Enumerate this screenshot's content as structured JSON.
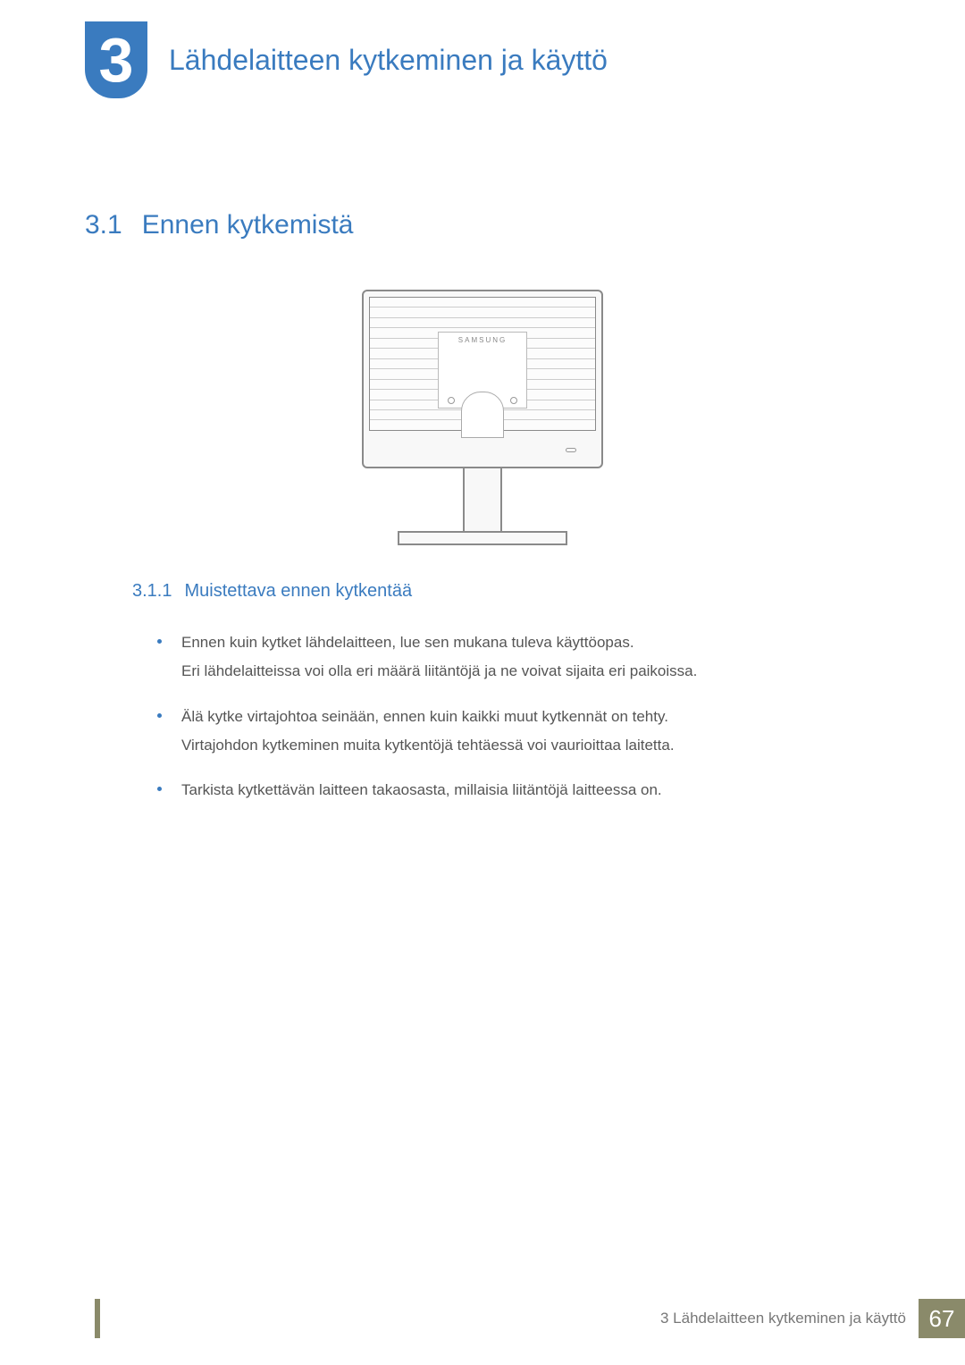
{
  "chapter": {
    "number": "3",
    "title": "Lähdelaitteen kytkeminen ja käyttö",
    "title_color": "#3a7bbf",
    "badge_bg": "#3a7bbf",
    "badge_text_color": "#ffffff"
  },
  "section": {
    "number": "3.1",
    "title": "Ennen kytkemistä",
    "color": "#3a7bbf",
    "fontsize": 30
  },
  "figure": {
    "type": "diagram",
    "brand_label": "SAMSUNG",
    "outline_color": "#8a8a8a",
    "fill_color": "#f8f8f8",
    "line_color": "#cccccc"
  },
  "subsection": {
    "number": "3.1.1",
    "title": "Muistettava ennen kytkentää",
    "color": "#3a7bbf",
    "fontsize": 20
  },
  "bullets": [
    {
      "lines": [
        "Ennen kuin kytket lähdelaitteen, lue sen mukana tuleva käyttöopas.",
        "Eri lähdelaitteissa voi olla eri määrä liitäntöjä ja ne voivat sijaita eri paikoissa."
      ]
    },
    {
      "lines": [
        "Älä kytke virtajohtoa seinään, ennen kuin kaikki muut kytkennät on tehty.",
        "Virtajohdon kytkeminen muita kytkentöjä tehtäessä voi vaurioittaa laitetta."
      ]
    },
    {
      "lines": [
        "Tarkista kytkettävän laitteen takaosasta, millaisia liitäntöjä laitteessa on."
      ]
    }
  ],
  "bullet_style": {
    "dot_color": "#3a7bbf",
    "text_color": "#555555",
    "fontsize": 17
  },
  "footer": {
    "text": "3 Lähdelaitteen kytkeminen ja käyttö",
    "page_number": "67",
    "page_bg": "#8a8a6a",
    "page_text_color": "#ffffff",
    "footer_text_color": "#777777"
  }
}
